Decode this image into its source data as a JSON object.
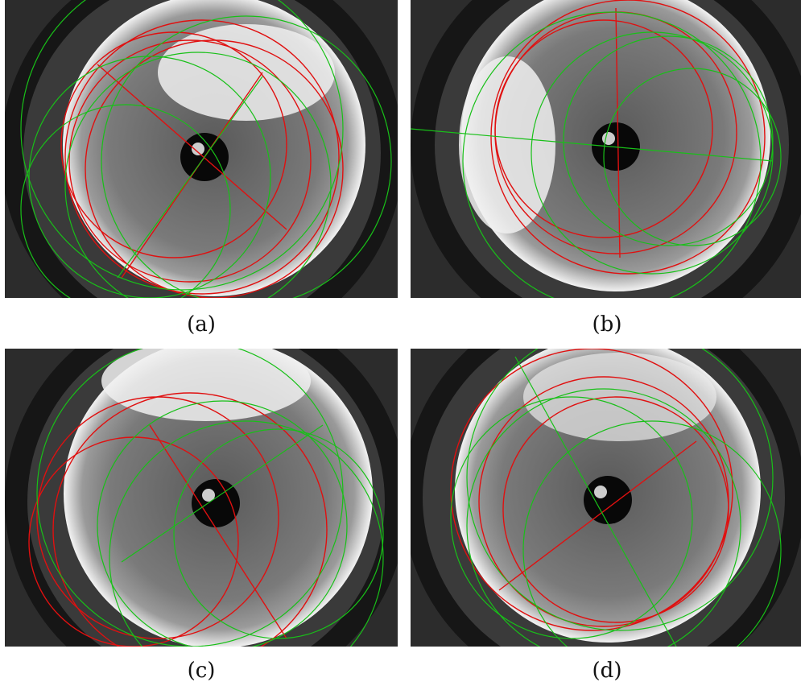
{
  "figure": {
    "panels": [
      {
        "caption": "(a)"
      },
      {
        "caption": "(b)"
      },
      {
        "caption": "(c)"
      },
      {
        "caption": "(d)"
      }
    ],
    "colors": {
      "background": "#ffffff",
      "frame": "#1e1e1e",
      "lens_ring": "#0c0c0c",
      "sky": "#f2f2f2",
      "ground": "#6e6e6e",
      "line_red": "#e01010",
      "line_green": "#18c018"
    }
  }
}
